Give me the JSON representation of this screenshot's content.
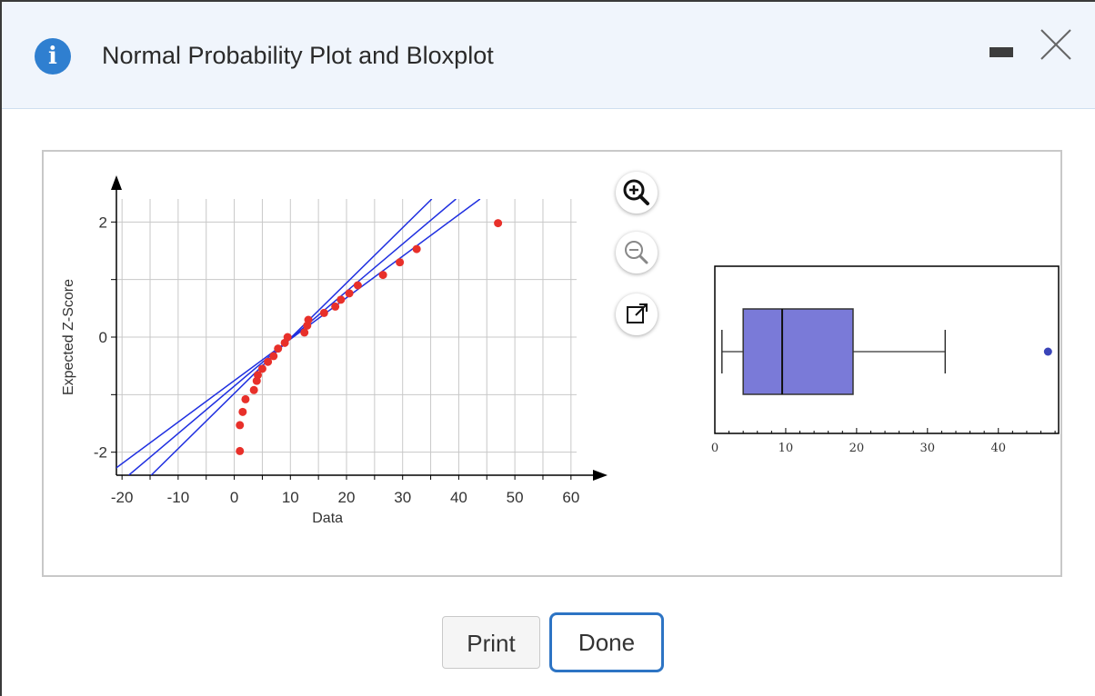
{
  "dialog": {
    "title": "Normal Probability Plot and Bloxplot",
    "info_icon_glyph": "i",
    "icons": [
      "info-icon",
      "minimize-icon",
      "close-icon",
      "zoom-in-icon",
      "zoom-out-icon",
      "popout-icon"
    ]
  },
  "buttons": {
    "print": "Print",
    "done": "Done"
  },
  "colors": {
    "accent": "#2d74c4",
    "points": "#e8302a",
    "lines": "#1f2fe0",
    "box": "#7a7ad8"
  },
  "chart_data": [
    {
      "type": "scatter",
      "title": "",
      "xlabel": "Data",
      "ylabel": "Expected Z-Score",
      "xlim": [
        -20,
        60
      ],
      "ylim": [
        -2.4,
        2.4
      ],
      "xticks": [
        "-20",
        "-10",
        "0",
        "10",
        "20",
        "30",
        "40",
        "50",
        "60"
      ],
      "yticks": [
        "-2",
        "0",
        "2"
      ],
      "grid": true,
      "points": [
        {
          "x": 1,
          "y": -1.98
        },
        {
          "x": 1,
          "y": -1.53
        },
        {
          "x": 1.5,
          "y": -1.3
        },
        {
          "x": 2,
          "y": -1.08
        },
        {
          "x": 3.5,
          "y": -0.92
        },
        {
          "x": 4,
          "y": -0.76
        },
        {
          "x": 4.2,
          "y": -0.66
        },
        {
          "x": 5,
          "y": -0.55
        },
        {
          "x": 6,
          "y": -0.43
        },
        {
          "x": 7,
          "y": -0.33
        },
        {
          "x": 7.8,
          "y": -0.2
        },
        {
          "x": 9,
          "y": -0.1
        },
        {
          "x": 9.5,
          "y": 0
        },
        {
          "x": 12.5,
          "y": 0.08
        },
        {
          "x": 13,
          "y": 0.2
        },
        {
          "x": 13.2,
          "y": 0.3
        },
        {
          "x": 16,
          "y": 0.42
        },
        {
          "x": 18,
          "y": 0.53
        },
        {
          "x": 19,
          "y": 0.65
        },
        {
          "x": 20.5,
          "y": 0.76
        },
        {
          "x": 22,
          "y": 0.9
        },
        {
          "x": 26.5,
          "y": 1.08
        },
        {
          "x": 29.5,
          "y": 1.3
        },
        {
          "x": 32.5,
          "y": 1.53
        },
        {
          "x": 47,
          "y": 1.98
        }
      ],
      "reference_lines": [
        {
          "name": "upper",
          "points": [
            [
              -14.8,
              -2.4
            ],
            [
              35.2,
              2.4
            ]
          ]
        },
        {
          "name": "center",
          "points": [
            [
              -18.8,
              -2.4
            ],
            [
              39.5,
              2.4
            ]
          ]
        },
        {
          "name": "lower",
          "points": [
            [
              -22.8,
              -2.4
            ],
            [
              43.8,
              2.4
            ]
          ]
        }
      ]
    },
    {
      "type": "boxplot",
      "title": "",
      "xlim": [
        0,
        48
      ],
      "xticks": [
        "0",
        "10",
        "20",
        "30",
        "40"
      ],
      "whisker_low": 1,
      "q1": 4,
      "median": 9.5,
      "q3": 19.5,
      "whisker_high": 32.5,
      "outliers": [
        47
      ]
    }
  ]
}
